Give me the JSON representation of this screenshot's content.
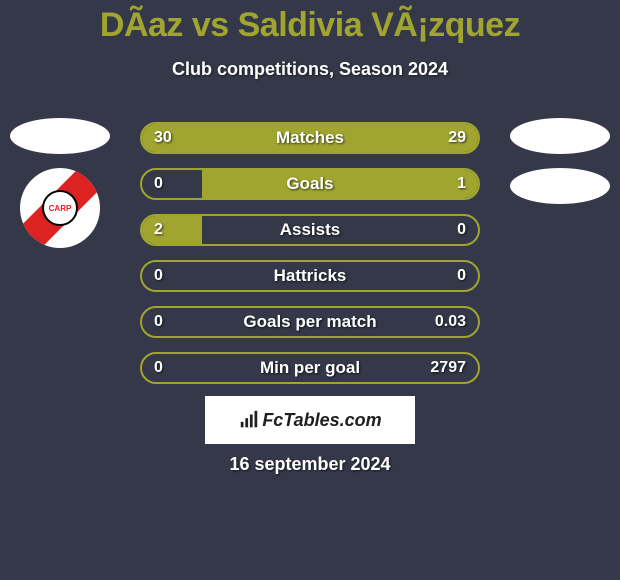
{
  "header": {
    "title": "DÃ­az vs Saldivia VÃ¡zquez",
    "subtitle": "Club competitions, Season 2024"
  },
  "colors": {
    "background": "#353849",
    "accent": "#a0a530",
    "text": "#ffffff",
    "badge_bg": "#ffffff",
    "badge_stripe": "#dd2222"
  },
  "stats": [
    {
      "label": "Matches",
      "left_val": "30",
      "right_val": "29",
      "left_pct": 50,
      "right_pct": 50
    },
    {
      "label": "Goals",
      "left_val": "0",
      "right_val": "1",
      "left_pct": 0,
      "right_pct": 82
    },
    {
      "label": "Assists",
      "left_val": "2",
      "right_val": "0",
      "left_pct": 18,
      "right_pct": 0
    },
    {
      "label": "Hattricks",
      "left_val": "0",
      "right_val": "0",
      "left_pct": 0,
      "right_pct": 0
    },
    {
      "label": "Goals per match",
      "left_val": "0",
      "right_val": "0.03",
      "left_pct": 0,
      "right_pct": 0
    },
    {
      "label": "Min per goal",
      "left_val": "0",
      "right_val": "2797",
      "left_pct": 0,
      "right_pct": 0
    }
  ],
  "team_badge_text": "CARP",
  "footer": {
    "brand": "FcTables.com",
    "date": "16 september 2024"
  }
}
